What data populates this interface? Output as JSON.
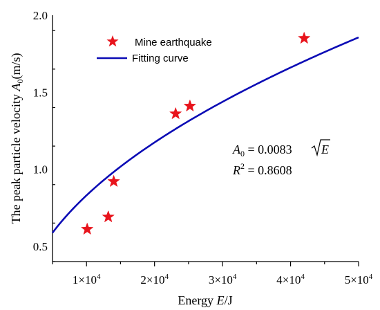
{
  "chart_data": {
    "type": "scatter",
    "title": "",
    "xlabel": {
      "prefix": "Energy ",
      "var": "E",
      "suffix": "/J"
    },
    "ylabel": {
      "prefix": "The peak particle velocity ",
      "var": "A",
      "sub": "0",
      "suffix": "(m/s)"
    },
    "xlim": [
      5000,
      50000
    ],
    "ylim": [
      0.4,
      2.0
    ],
    "x_ticks": [
      {
        "value": 10000,
        "mantissa": "1",
        "exp": "4"
      },
      {
        "value": 20000,
        "mantissa": "2",
        "exp": "4"
      },
      {
        "value": 30000,
        "mantissa": "3",
        "exp": "4"
      },
      {
        "value": 40000,
        "mantissa": "4",
        "exp": "4"
      },
      {
        "value": 50000,
        "mantissa": "5",
        "exp": "4"
      }
    ],
    "y_ticks": [
      {
        "value": 0.5,
        "label": "0.5"
      },
      {
        "value": 1.0,
        "label": "1.0"
      },
      {
        "value": 1.5,
        "label": "1.5"
      },
      {
        "value": 2.0,
        "label": "2.0"
      }
    ],
    "series": [
      {
        "name": "Mine earthquake",
        "kind": "scatter",
        "marker": "star",
        "color": "#e8141c",
        "points": [
          {
            "x": 10100,
            "y": 0.61
          },
          {
            "x": 13200,
            "y": 0.69
          },
          {
            "x": 14000,
            "y": 0.92
          },
          {
            "x": 23100,
            "y": 1.36
          },
          {
            "x": 25200,
            "y": 1.41
          },
          {
            "x": 42000,
            "y": 1.85
          }
        ]
      },
      {
        "name": "Fitting curve",
        "kind": "line",
        "color": "#0b0bb5",
        "function": "A0 = 0.0083*sqrt(E)",
        "coefficient": 0.0083
      }
    ],
    "legend": {
      "position": "top-left"
    },
    "annotation": {
      "equation": {
        "lhs_var": "A",
        "lhs_sub": "0",
        "rhs": " = 0.0083",
        "radicand": "E"
      },
      "r2": {
        "var": "R",
        "sup": "2",
        "rhs": " = 0.8608"
      }
    },
    "grid": false
  }
}
